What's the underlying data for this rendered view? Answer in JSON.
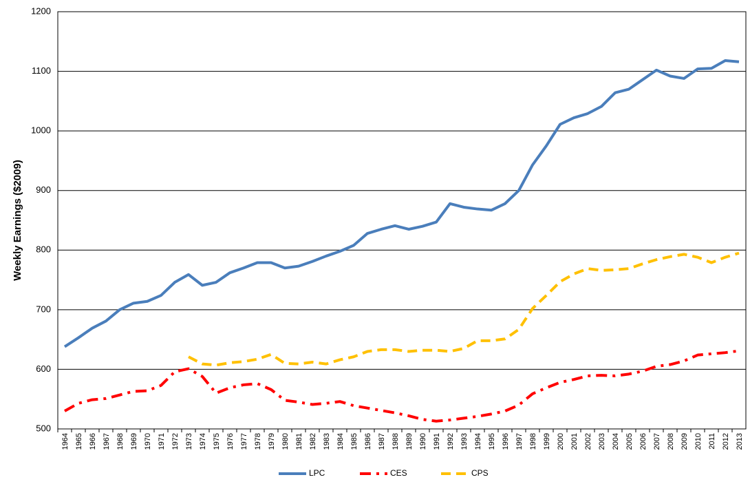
{
  "chart_data": {
    "type": "line",
    "y_label": "Weekly Earnings ($2009)",
    "categories": [
      "1964",
      "1965",
      "1966",
      "1967",
      "1968",
      "1969",
      "1970",
      "1971",
      "1972",
      "1973",
      "1974",
      "1975",
      "1976",
      "1977",
      "1978",
      "1979",
      "1980",
      "1981",
      "1982",
      "1983",
      "1984",
      "1985",
      "1986",
      "1987",
      "1988",
      "1989",
      "1990",
      "1991",
      "1992",
      "1993",
      "1994",
      "1995",
      "1996",
      "1997",
      "1998",
      "1999",
      "2000",
      "2001",
      "2002",
      "2003",
      "2004",
      "2005",
      "2006",
      "2007",
      "2008",
      "2009",
      "2010",
      "2011",
      "2012",
      "2013"
    ],
    "series": [
      {
        "name": "LPC",
        "color": "#4a7ebb",
        "line_style": "solid",
        "values": [
          638,
          653,
          669,
          681,
          700,
          711,
          714,
          724,
          746,
          759,
          741,
          746,
          762,
          770,
          779,
          779,
          770,
          773,
          781,
          790,
          798,
          808,
          828,
          835,
          841,
          835,
          840,
          847,
          878,
          872,
          869,
          867,
          878,
          900,
          943,
          975,
          1011,
          1022,
          1029,
          1041,
          1064,
          1070,
          1086,
          1102,
          1092,
          1088,
          1104,
          1105,
          1118,
          1116
        ]
      },
      {
        "name": "CES",
        "color": "#ff0000",
        "line_style": "dashdot",
        "values": [
          530,
          543,
          549,
          551,
          557,
          563,
          564,
          573,
          596,
          601,
          588,
          560,
          569,
          574,
          576,
          566,
          548,
          545,
          541,
          543,
          546,
          539,
          535,
          531,
          527,
          522,
          516,
          513,
          515,
          518,
          521,
          525,
          530,
          540,
          559,
          569,
          578,
          583,
          589,
          590,
          589,
          592,
          597,
          605,
          608,
          614,
          624,
          626,
          628,
          631
        ]
      },
      {
        "name": "CPS",
        "color": "#ffc000",
        "line_style": "dash",
        "values": [
          null,
          null,
          null,
          null,
          null,
          null,
          null,
          null,
          null,
          621,
          609,
          607,
          611,
          613,
          617,
          625,
          610,
          609,
          612,
          609,
          616,
          621,
          630,
          633,
          633,
          630,
          632,
          632,
          630,
          635,
          648,
          648,
          651,
          667,
          702,
          724,
          747,
          760,
          769,
          766,
          767,
          769,
          777,
          784,
          789,
          793,
          788,
          779,
          788,
          795
        ]
      }
    ],
    "ylim": [
      500,
      1200
    ],
    "yticks": [
      500,
      600,
      700,
      800,
      900,
      1000,
      1100,
      1200
    ],
    "grid": true,
    "legend": "bottom"
  }
}
